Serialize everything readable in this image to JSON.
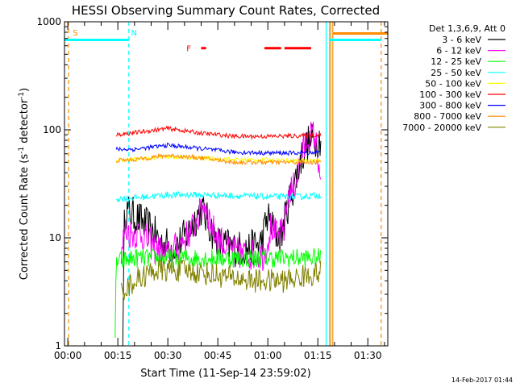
{
  "chart_data": {
    "type": "line",
    "title": "HESSI Observing Summary Count Rates, Corrected",
    "xlabel": "Start Time (11-Sep-14 23:59:02)",
    "ylabel_main": "Corrected Count Rate (s",
    "ylabel_sup1": "-1",
    "ylabel_mid": " detector",
    "ylabel_sup2": "-1",
    "ylabel_end": ")",
    "y_scale": "log",
    "ylim": [
      1,
      1000
    ],
    "xlim_minutes": [
      -1,
      96
    ],
    "y_ticks": [
      {
        "v": 1,
        "label": "1"
      },
      {
        "v": 10,
        "label": "10"
      },
      {
        "v": 100,
        "label": "100"
      },
      {
        "v": 1000,
        "label": "1000"
      }
    ],
    "x_ticks": [
      {
        "m": 0,
        "label": "00:00"
      },
      {
        "m": 15,
        "label": "00:15"
      },
      {
        "m": 30,
        "label": "00:30"
      },
      {
        "m": 45,
        "label": "00:45"
      },
      {
        "m": 60,
        "label": "01:00"
      },
      {
        "m": 75,
        "label": "01:15"
      },
      {
        "m": 90,
        "label": "01:30"
      }
    ],
    "legend_title": "Det 1,3,6,9, Att 0",
    "legend_position": "right",
    "series": [
      {
        "name": "3 - 6 keV",
        "color": "#000000",
        "noise": 0.35,
        "points": [
          [
            16.5,
            1
          ],
          [
            17,
            18
          ],
          [
            20,
            16
          ],
          [
            25,
            12
          ],
          [
            28,
            9
          ],
          [
            32,
            8
          ],
          [
            36,
            11
          ],
          [
            40,
            19
          ],
          [
            42,
            14
          ],
          [
            45,
            9
          ],
          [
            50,
            8
          ],
          [
            55,
            8
          ],
          [
            58,
            9
          ],
          [
            60,
            16
          ],
          [
            62,
            11
          ],
          [
            64,
            10
          ],
          [
            66,
            20
          ],
          [
            68,
            32
          ],
          [
            70,
            55
          ],
          [
            72,
            75
          ],
          [
            74,
            80
          ],
          [
            76,
            85
          ]
        ]
      },
      {
        "name": "6 - 12 keV",
        "color": "#ff00ff",
        "noise": 0.3,
        "points": [
          [
            16,
            6
          ],
          [
            17,
            12
          ],
          [
            19,
            11
          ],
          [
            22,
            11
          ],
          [
            26,
            8
          ],
          [
            30,
            7
          ],
          [
            34,
            9
          ],
          [
            38,
            13
          ],
          [
            41,
            21
          ],
          [
            44,
            11
          ],
          [
            48,
            8
          ],
          [
            52,
            7
          ],
          [
            56,
            7
          ],
          [
            59,
            7
          ],
          [
            61,
            13
          ],
          [
            63,
            10
          ],
          [
            65,
            12
          ],
          [
            66,
            25
          ],
          [
            68,
            30
          ],
          [
            70,
            55
          ],
          [
            72,
            85
          ],
          [
            74,
            90
          ],
          [
            75.8,
            40
          ],
          [
            76,
            5
          ]
        ]
      },
      {
        "name": "12 - 25 keV",
        "color": "#00ff00",
        "noise": 0.18,
        "points": [
          [
            14.2,
            1
          ],
          [
            14.5,
            6
          ],
          [
            20,
            6.5
          ],
          [
            30,
            6.5
          ],
          [
            40,
            6.5
          ],
          [
            50,
            6.5
          ],
          [
            60,
            6.5
          ],
          [
            70,
            6.5
          ],
          [
            76,
            6.5
          ]
        ]
      },
      {
        "name": "25 - 50 keV",
        "color": "#00ffff",
        "noise": 0.06,
        "points": [
          [
            14.5,
            23
          ],
          [
            20,
            23.5
          ],
          [
            30,
            25
          ],
          [
            40,
            25
          ],
          [
            50,
            24.5
          ],
          [
            60,
            24
          ],
          [
            70,
            24
          ],
          [
            76,
            25
          ]
        ]
      },
      {
        "name": "50 - 100 keV",
        "color": "#ffff00",
        "noise": 0.04,
        "points": [
          [
            14.5,
            52
          ],
          [
            30,
            56
          ],
          [
            50,
            53
          ],
          [
            76,
            52
          ]
        ]
      },
      {
        "name": "100 - 300 keV",
        "color": "#ff0000",
        "noise": 0.04,
        "points": [
          [
            14.5,
            90
          ],
          [
            20,
            94
          ],
          [
            30,
            103
          ],
          [
            40,
            93
          ],
          [
            50,
            87
          ],
          [
            60,
            87
          ],
          [
            70,
            88
          ],
          [
            76,
            90
          ]
        ]
      },
      {
        "name": "300 - 800 keV",
        "color": "#0000ff",
        "noise": 0.04,
        "points": [
          [
            14.5,
            66
          ],
          [
            20,
            66
          ],
          [
            30,
            72
          ],
          [
            40,
            67
          ],
          [
            50,
            62
          ],
          [
            60,
            61
          ],
          [
            70,
            61
          ],
          [
            76,
            62
          ]
        ]
      },
      {
        "name": "800 - 7000 keV",
        "color": "#ff8c00",
        "noise": 0.04,
        "points": [
          [
            14.5,
            52
          ],
          [
            20,
            53
          ],
          [
            30,
            58
          ],
          [
            40,
            55
          ],
          [
            50,
            50
          ],
          [
            60,
            50
          ],
          [
            70,
            50
          ],
          [
            76,
            50
          ]
        ]
      },
      {
        "name": "7000 - 20000 keV",
        "color": "#808000",
        "noise": 0.22,
        "points": [
          [
            16,
            3.3
          ],
          [
            18,
            3.5
          ],
          [
            20,
            4
          ],
          [
            26,
            5
          ],
          [
            35,
            5
          ],
          [
            45,
            4.5
          ],
          [
            55,
            4
          ],
          [
            65,
            4
          ],
          [
            76,
            4.8
          ]
        ]
      }
    ],
    "flag_markers": [
      {
        "label": "S",
        "color": "#ff8c00",
        "x_minutes": 0.5
      },
      {
        "label": "N",
        "color": "#00ffff",
        "x_minutes": 18
      },
      {
        "label": "F",
        "color": "#ff0000",
        "x_minutes": 38
      }
    ],
    "flag_segments": [
      {
        "color": "#00ffff",
        "value": 680,
        "x": [
          -1,
          18.3
        ]
      },
      {
        "color": "#00ffff",
        "value": 680,
        "x": [
          78.5,
          94
        ]
      },
      {
        "color": "#ff8c00",
        "value": 780,
        "x": [
          79.5,
          96
        ]
      },
      {
        "color": "#ff0000",
        "value": 570,
        "x": [
          40,
          41.5
        ]
      },
      {
        "color": "#ff0000",
        "value": 570,
        "x": [
          59,
          64
        ]
      },
      {
        "color": "#ff0000",
        "value": 570,
        "x": [
          65,
          73
        ]
      }
    ],
    "vlines": [
      {
        "color": "#00ffff",
        "x": 18.3,
        "style": "dashed"
      },
      {
        "color": "#00ffff",
        "x": 77.5,
        "style": "solid"
      },
      {
        "color": "#00ffff",
        "x": 78.5,
        "style": "solid"
      },
      {
        "color": "#ff8c00",
        "x": 0.2,
        "style": "dashed"
      },
      {
        "color": "#ff8c00",
        "x": 78.9,
        "style": "solid"
      },
      {
        "color": "#ff8c00",
        "x": 79.5,
        "style": "solid"
      },
      {
        "color": "#ff8c00",
        "x": 94,
        "style": "dashed"
      }
    ],
    "timestamp": "14-Feb-2017 01:44"
  }
}
